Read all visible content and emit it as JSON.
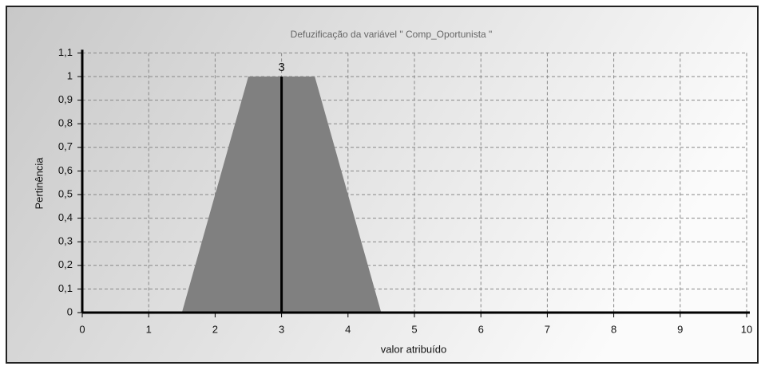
{
  "chart_data": {
    "type": "area",
    "title": "Defuzificação da variável \" Comp_Oportunista \"",
    "x_label": "valor atribuído",
    "y_label": "Pertinência",
    "x": [
      1.5,
      2.5,
      3.5,
      4.5
    ],
    "values": [
      0,
      1,
      1,
      0
    ],
    "color": "#808080",
    "defuzzified_value": 3,
    "xlim": [
      0,
      10
    ],
    "xticks": [
      0,
      1,
      2,
      3,
      4,
      5,
      6,
      7,
      8,
      9,
      10
    ],
    "ylim": [
      0,
      1.1
    ],
    "yticks": [
      0,
      {
        "value": 0.1,
        "label": "0,1"
      },
      {
        "value": 0.2,
        "label": "0,2"
      },
      {
        "value": 0.3,
        "label": "0,3"
      },
      {
        "value": 0.4,
        "label": "0,4"
      },
      {
        "value": 0.5,
        "label": "0,5"
      },
      {
        "value": 0.6,
        "label": "0,6"
      },
      {
        "value": 0.7,
        "label": "0,7"
      },
      {
        "value": 0.8,
        "label": "0,8"
      },
      {
        "value": 0.9,
        "label": "0,9"
      },
      1,
      {
        "value": 1.1,
        "label": "1,1"
      }
    ],
    "grid": true
  }
}
